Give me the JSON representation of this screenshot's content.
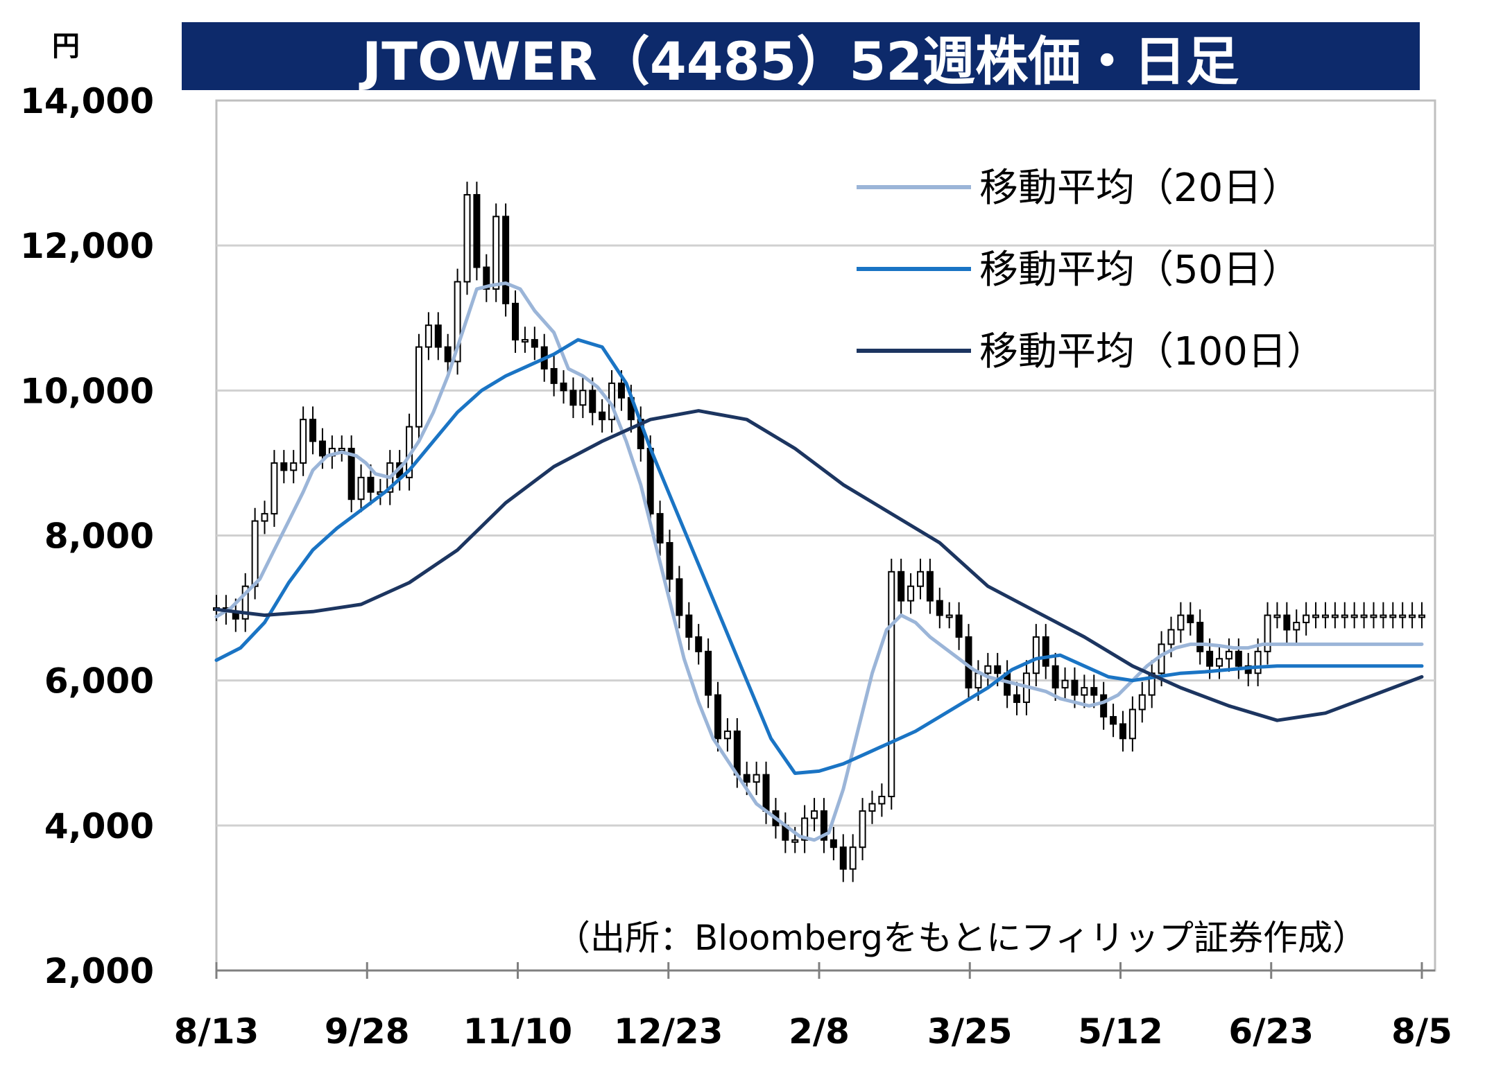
{
  "chart_data": {
    "type": "line",
    "title": "JTOWER（4485）52週株価・日足",
    "y_unit": "円",
    "source_note": "（出所：Bloombergをもとにフィリップ証券作成）",
    "xlabel": "",
    "ylabel": "",
    "x_ticks": [
      "8/13",
      "9/28",
      "11/10",
      "12/23",
      "2/8",
      "3/25",
      "5/12",
      "6/23",
      "8/5"
    ],
    "y_ticks": [
      "2,000",
      "4,000",
      "6,000",
      "8,000",
      "10,000",
      "12,000",
      "14,000"
    ],
    "ylim": [
      2000,
      14000
    ],
    "grid": true,
    "legend_position": "top-right",
    "colors": {
      "title_bg": "#0d2a6b",
      "ma20": "#9bb5d8",
      "ma50": "#1a74c4",
      "ma100": "#1c3560",
      "candle": "#000000",
      "grid": "#d0d0d0"
    },
    "series": [
      {
        "name": "移動平均（20日）",
        "key": "ma20",
        "x": [
          0,
          3,
          6,
          9,
          12,
          15,
          18,
          20,
          23,
          26,
          29,
          31,
          33,
          36,
          39,
          42,
          45,
          48,
          51,
          54,
          57,
          60,
          63,
          66,
          70,
          73,
          76,
          79,
          82,
          85,
          88,
          91,
          94,
          97,
          100,
          103,
          106,
          109,
          112,
          115,
          118,
          121,
          124,
          127,
          130,
          133,
          136,
          139,
          142,
          145,
          148,
          151,
          154,
          157,
          160,
          163,
          166,
          169,
          172,
          175,
          178,
          181,
          184,
          187,
          190,
          193,
          196,
          199,
          202,
          205,
          208,
          211,
          214,
          217,
          220,
          223,
          226,
          229,
          232,
          235,
          238,
          241,
          244,
          247,
          250
        ],
        "values": [
          6880,
          7000,
          7200,
          7400,
          7800,
          8200,
          8600,
          8900,
          9100,
          9150,
          9100,
          9000,
          8850,
          8800,
          9000,
          9300,
          9700,
          10200,
          10800,
          11400,
          11450,
          11480,
          11400,
          11100,
          10800,
          10300,
          10200,
          10050,
          9800,
          9300,
          8700,
          7900,
          7100,
          6300,
          5700,
          5200,
          4900,
          4600,
          4300,
          4150,
          4000,
          3850,
          3800,
          3900,
          4500,
          5300,
          6100,
          6700,
          6900,
          6800,
          6600,
          6450,
          6300,
          6150,
          6050,
          6000,
          5950,
          5900,
          5850,
          5750,
          5700,
          5650,
          5700,
          5800,
          6000,
          6200,
          6350,
          6450,
          6500,
          6500,
          6480,
          6450,
          6450,
          6500,
          6500,
          6500,
          6500,
          6500,
          6500,
          6500,
          6500,
          6500,
          6500,
          6500,
          6500
        ]
      },
      {
        "name": "移動平均（50日）",
        "key": "ma50",
        "x": [
          0,
          5,
          10,
          15,
          20,
          25,
          30,
          35,
          40,
          45,
          50,
          55,
          60,
          65,
          70,
          75,
          80,
          85,
          90,
          95,
          100,
          105,
          110,
          115,
          120,
          125,
          130,
          135,
          140,
          145,
          150,
          155,
          160,
          165,
          170,
          175,
          180,
          185,
          190,
          195,
          200,
          205,
          210,
          215,
          220,
          225,
          230,
          235,
          240,
          245,
          250
        ],
        "values": [
          6280,
          6450,
          6800,
          7350,
          7800,
          8100,
          8350,
          8600,
          8900,
          9300,
          9700,
          10000,
          10200,
          10350,
          10500,
          10700,
          10600,
          10100,
          9200,
          8400,
          7600,
          6800,
          6000,
          5200,
          4720,
          4750,
          4850,
          5000,
          5150,
          5300,
          5500,
          5700,
          5900,
          6150,
          6300,
          6350,
          6200,
          6050,
          6000,
          6050,
          6100,
          6120,
          6150,
          6180,
          6200,
          6200,
          6200,
          6200,
          6200,
          6200,
          6200
        ]
      },
      {
        "name": "移動平均（100日）",
        "key": "ma100",
        "x": [
          0,
          10,
          20,
          30,
          40,
          50,
          60,
          70,
          80,
          90,
          100,
          110,
          120,
          130,
          140,
          150,
          160,
          170,
          180,
          190,
          200,
          210,
          220,
          230,
          240,
          250
        ],
        "values": [
          6980,
          6900,
          6950,
          7050,
          7350,
          7800,
          8450,
          8950,
          9300,
          9600,
          9720,
          9600,
          9200,
          8700,
          8300,
          7900,
          7300,
          6950,
          6600,
          6200,
          5900,
          5650,
          5450,
          5550,
          5800,
          6050
        ]
      }
    ],
    "candles": {
      "x": [
        0,
        2,
        4,
        6,
        8,
        10,
        12,
        14,
        16,
        18,
        20,
        22,
        24,
        26,
        28,
        30,
        32,
        34,
        36,
        38,
        40,
        42,
        44,
        46,
        48,
        50,
        52,
        54,
        56,
        58,
        60,
        62,
        64,
        66,
        68,
        70,
        72,
        74,
        76,
        78,
        80,
        82,
        84,
        86,
        88,
        90,
        92,
        94,
        96,
        98,
        100,
        102,
        104,
        106,
        108,
        110,
        112,
        114,
        116,
        118,
        120,
        122,
        124,
        126,
        128,
        130,
        132,
        134,
        136,
        138,
        140,
        142,
        144,
        146,
        148,
        150,
        152,
        154,
        156,
        158,
        160,
        162,
        164,
        166,
        168,
        170,
        172,
        174,
        176,
        178,
        180,
        182,
        184,
        186,
        188,
        190,
        192,
        194,
        196,
        198,
        200,
        202,
        204,
        206,
        208,
        210,
        212,
        214,
        216,
        218,
        220,
        222,
        224,
        226,
        228,
        230,
        232,
        234,
        236,
        238,
        240,
        242,
        244,
        246,
        248,
        250
      ],
      "values": [
        7000,
        6950,
        6850,
        7300,
        8200,
        8300,
        9000,
        8900,
        9000,
        9600,
        9300,
        9100,
        9200,
        9200,
        8500,
        8800,
        8600,
        8600,
        9000,
        8800,
        9500,
        10600,
        10900,
        10600,
        10400,
        11500,
        12700,
        11700,
        11400,
        12400,
        11200,
        10700,
        10700,
        10600,
        10300,
        10100,
        10000,
        9800,
        10000,
        9700,
        9600,
        10100,
        9900,
        9600,
        9200,
        8300,
        7900,
        7400,
        6900,
        6600,
        6400,
        5800,
        5200,
        5300,
        4700,
        4600,
        4700,
        4200,
        4000,
        3800,
        3800,
        4100,
        4200,
        3800,
        3700,
        3400,
        3700,
        4200,
        4300,
        4400,
        7500,
        7100,
        7300,
        7500,
        7100,
        6900,
        6900,
        6600,
        5900,
        6100,
        6200,
        6100,
        5800,
        5700,
        6100,
        6600,
        6200,
        5900,
        6000,
        5800,
        5900,
        5800,
        5500,
        5400,
        5200,
        5600,
        5800,
        6100,
        6500,
        6700,
        6900,
        6800,
        6400,
        6200,
        6300,
        6400,
        6200,
        6100,
        6400,
        6900,
        6900,
        6700,
        6800,
        6900,
        6900,
        6900,
        6900,
        6900,
        6900,
        6900,
        6900,
        6900,
        6900,
        6900,
        6900,
        6900
      ]
    }
  }
}
